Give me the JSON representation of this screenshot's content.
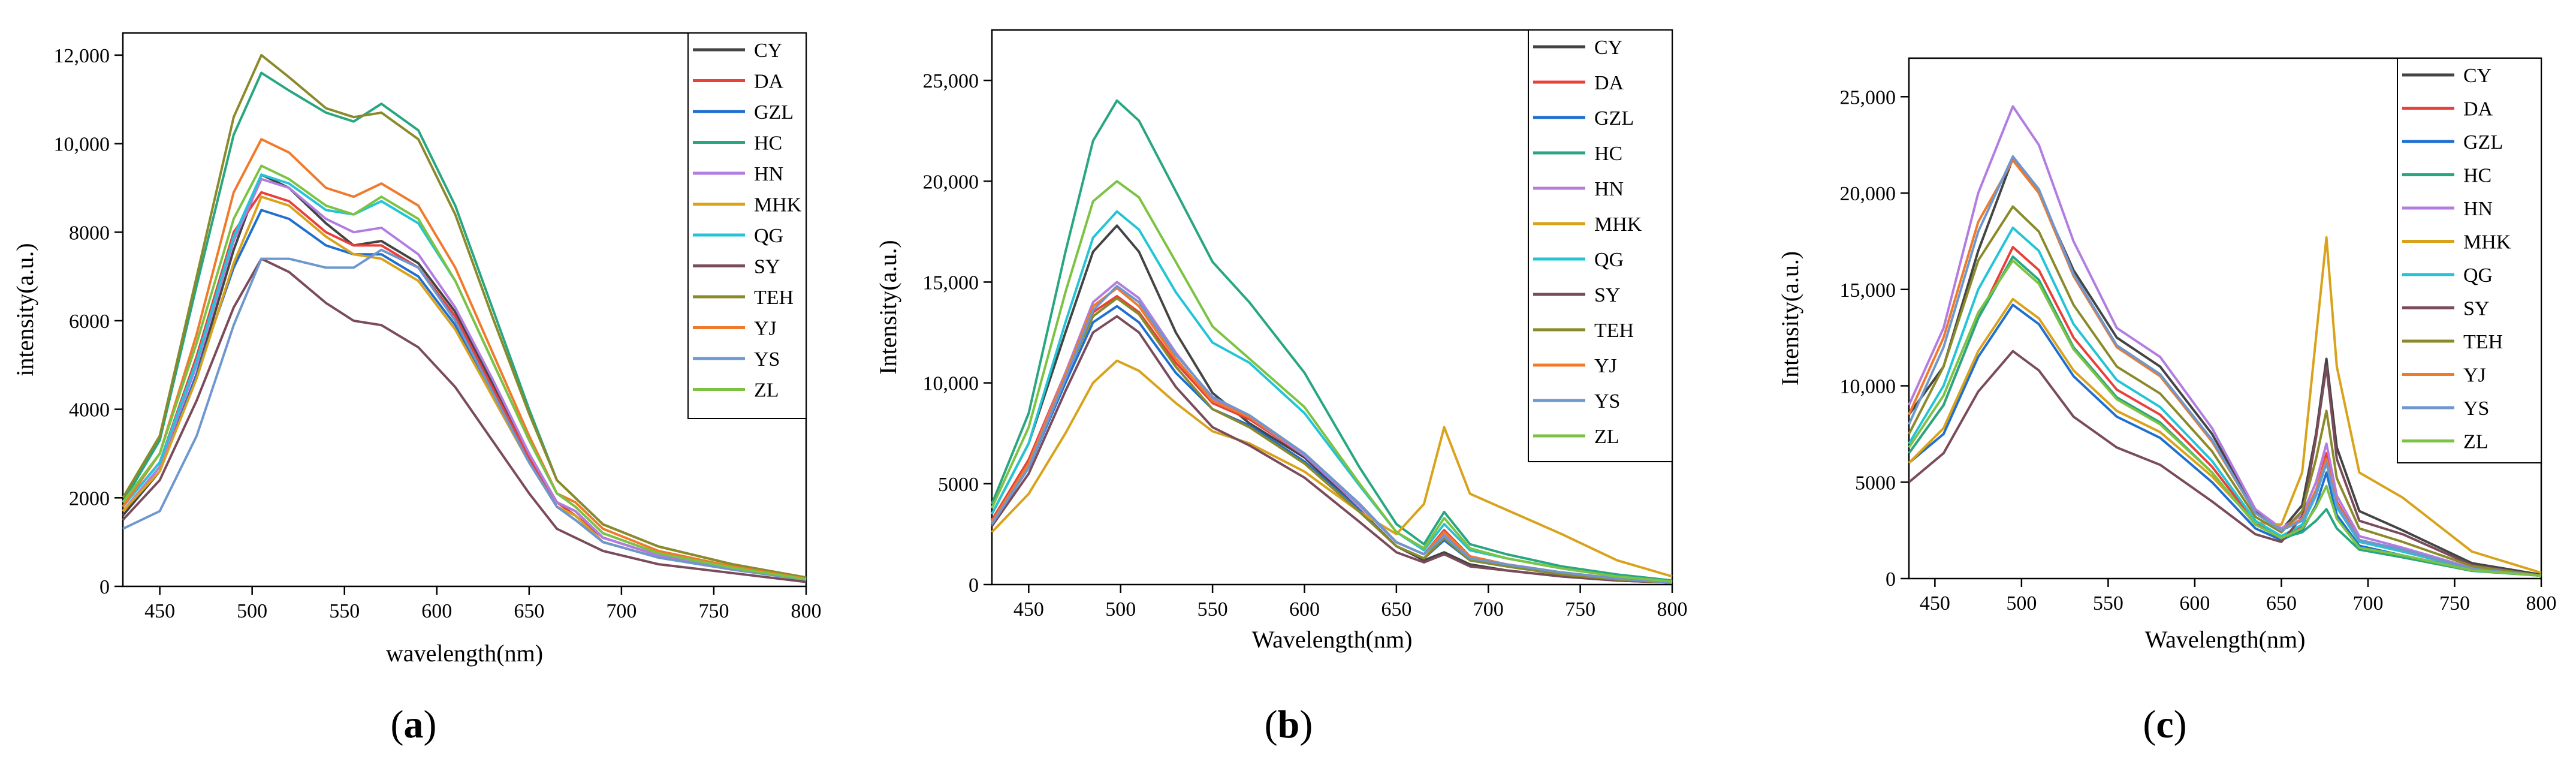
{
  "chart_data": [
    {
      "panel": "(a)",
      "panel_letter": "a",
      "type": "line",
      "xlabel": "wavelength(nm)",
      "ylabel": "intensity(a.u.)",
      "xlim": [
        430,
        800
      ],
      "ylim": [
        0,
        12500
      ],
      "xticks": [
        450,
        500,
        550,
        600,
        650,
        700,
        750,
        800
      ],
      "xtick_labels": [
        "450",
        "500",
        "550",
        "600",
        "650",
        "700",
        "750",
        "800"
      ],
      "yticks": [
        0,
        2000,
        4000,
        6000,
        8000,
        10000,
        12000
      ],
      "ytick_labels": [
        "0",
        "2000",
        "4000",
        "6000",
        "8000",
        "10,000",
        "12,000"
      ],
      "x": [
        430,
        450,
        470,
        490,
        505,
        520,
        540,
        555,
        570,
        590,
        610,
        630,
        650,
        665,
        675,
        690,
        720,
        760,
        800
      ],
      "series": [
        {
          "name": "CY",
          "color": "#444444",
          "values": [
            1600,
            2600,
            4800,
            7600,
            9300,
            9000,
            8200,
            7700,
            7800,
            7300,
            6200,
            4600,
            3000,
            1900,
            1700,
            1100,
            700,
            400,
            150
          ]
        },
        {
          "name": "DA",
          "color": "#e8403a",
          "values": [
            1800,
            2800,
            5200,
            8000,
            8900,
            8700,
            8000,
            7700,
            7700,
            7200,
            6100,
            4500,
            2900,
            1900,
            1600,
            1100,
            700,
            400,
            150
          ]
        },
        {
          "name": "GZL",
          "color": "#1f6fd1",
          "values": [
            1700,
            2600,
            4800,
            7200,
            8500,
            8300,
            7700,
            7500,
            7500,
            7000,
            5900,
            4300,
            2800,
            1800,
            1500,
            1000,
            650,
            380,
            150
          ]
        },
        {
          "name": "HC",
          "color": "#27a681",
          "values": [
            1900,
            3300,
            6800,
            10200,
            11600,
            11200,
            10700,
            10500,
            10900,
            10300,
            8600,
            6300,
            4000,
            2400,
            2000,
            1400,
            900,
            500,
            200
          ]
        },
        {
          "name": "HN",
          "color": "#b27ce0",
          "values": [
            1700,
            2700,
            5000,
            7800,
            9200,
            9000,
            8300,
            8000,
            8100,
            7500,
            6300,
            4700,
            3000,
            1900,
            1700,
            1100,
            700,
            400,
            150
          ]
        },
        {
          "name": "MHK",
          "color": "#d9a21b",
          "values": [
            1700,
            2600,
            4700,
            7300,
            8800,
            8600,
            7900,
            7500,
            7400,
            6900,
            5800,
            4300,
            2800,
            1800,
            1600,
            1000,
            650,
            380,
            150
          ]
        },
        {
          "name": "QG",
          "color": "#22c4d6",
          "values": [
            1800,
            2800,
            5100,
            7900,
            9300,
            9100,
            8500,
            8400,
            8700,
            8200,
            6900,
            5100,
            3300,
            2100,
            1800,
            1200,
            750,
            420,
            160
          ]
        },
        {
          "name": "SY",
          "color": "#7a4b5a",
          "values": [
            1500,
            2400,
            4200,
            6300,
            7400,
            7100,
            6400,
            6000,
            5900,
            5400,
            4500,
            3300,
            2100,
            1300,
            1100,
            800,
            500,
            300,
            100
          ]
        },
        {
          "name": "TEH",
          "color": "#8a8a2a",
          "values": [
            2000,
            3400,
            7000,
            10600,
            12000,
            11500,
            10800,
            10600,
            10700,
            10100,
            8400,
            6100,
            3900,
            2400,
            2000,
            1400,
            900,
            500,
            200
          ]
        },
        {
          "name": "YJ",
          "color": "#f07a2c",
          "values": [
            1800,
            3000,
            5700,
            8900,
            10100,
            9800,
            9000,
            8800,
            9100,
            8600,
            7200,
            5300,
            3400,
            2100,
            1900,
            1300,
            800,
            450,
            170
          ]
        },
        {
          "name": "YS",
          "color": "#6e97cf",
          "values": [
            1300,
            1700,
            3400,
            5900,
            7400,
            7400,
            7200,
            7200,
            7600,
            7200,
            6000,
            4400,
            2800,
            1800,
            1500,
            1000,
            650,
            380,
            150
          ]
        },
        {
          "name": "ZL",
          "color": "#7cc243",
          "values": [
            1900,
            3000,
            5500,
            8300,
            9500,
            9200,
            8600,
            8400,
            8800,
            8300,
            6900,
            5100,
            3300,
            2100,
            1800,
            1200,
            750,
            420,
            160
          ]
        }
      ]
    },
    {
      "panel": "(b)",
      "panel_letter": "b",
      "type": "line",
      "xlabel": "Wavelength(nm)",
      "ylabel": "Intensity(a.u.)",
      "xlim": [
        430,
        800
      ],
      "ylim": [
        0,
        27500
      ],
      "xticks": [
        450,
        500,
        550,
        600,
        650,
        700,
        750,
        800
      ],
      "xtick_labels": [
        "450",
        "500",
        "550",
        "600",
        "650",
        "700",
        "750",
        "800"
      ],
      "yticks": [
        0,
        5000,
        10000,
        15000,
        20000,
        25000
      ],
      "ytick_labels": [
        "0",
        "5000",
        "10,000",
        "15,000",
        "20,000",
        "25,000"
      ],
      "x": [
        430,
        450,
        470,
        485,
        498,
        510,
        530,
        550,
        570,
        600,
        630,
        650,
        665,
        676,
        690,
        710,
        740,
        770,
        800
      ],
      "series": [
        {
          "name": "CY",
          "color": "#444444",
          "values": [
            3500,
            7000,
            12500,
            16500,
            17800,
            16500,
            12500,
            9500,
            8000,
            6300,
            3700,
            1900,
            1200,
            1600,
            1000,
            700,
            400,
            200,
            100
          ]
        },
        {
          "name": "DA",
          "color": "#e8403a",
          "values": [
            3200,
            6200,
            10500,
            13500,
            14300,
            13500,
            11000,
            9000,
            8200,
            6400,
            3900,
            2100,
            1500,
            2700,
            1400,
            1000,
            600,
            300,
            100
          ]
        },
        {
          "name": "GZL",
          "color": "#1f6fd1",
          "values": [
            3000,
            5800,
            10000,
            13000,
            13800,
            13000,
            10500,
            8700,
            7900,
            6100,
            3700,
            1900,
            1300,
            2200,
            1200,
            900,
            500,
            250,
            100
          ]
        },
        {
          "name": "HC",
          "color": "#27a681",
          "values": [
            4000,
            8500,
            16500,
            22000,
            24000,
            23000,
            19500,
            16000,
            14000,
            10500,
            5800,
            3000,
            2000,
            3600,
            2000,
            1500,
            900,
            500,
            200
          ]
        },
        {
          "name": "HN",
          "color": "#b27ce0",
          "values": [
            3000,
            6000,
            10500,
            14000,
            15000,
            14200,
            11500,
            9200,
            8300,
            6400,
            3900,
            2100,
            1500,
            2500,
            1300,
            1000,
            600,
            300,
            100
          ]
        },
        {
          "name": "MHK",
          "color": "#d9a21b",
          "values": [
            2600,
            4500,
            7500,
            10000,
            11100,
            10600,
            9000,
            7600,
            7000,
            5600,
            3600,
            2500,
            4000,
            7800,
            4500,
            3700,
            2500,
            1200,
            400
          ]
        },
        {
          "name": "QG",
          "color": "#22c4d6",
          "values": [
            3500,
            7000,
            13000,
            17200,
            18500,
            17600,
            14500,
            12000,
            11000,
            8500,
            4900,
            2600,
            1700,
            3000,
            1700,
            1300,
            800,
            400,
            150
          ]
        },
        {
          "name": "SY",
          "color": "#7a4b5a",
          "values": [
            2900,
            5500,
            9600,
            12500,
            13300,
            12500,
            9800,
            7800,
            6900,
            5300,
            3100,
            1600,
            1100,
            1500,
            900,
            700,
            400,
            200,
            100
          ]
        },
        {
          "name": "TEH",
          "color": "#8a8a2a",
          "values": [
            3100,
            6000,
            10300,
            13300,
            14200,
            13400,
            10800,
            8700,
            7800,
            6000,
            3600,
            1900,
            1300,
            2300,
            1200,
            900,
            500,
            250,
            100
          ]
        },
        {
          "name": "YJ",
          "color": "#f07a2c",
          "values": [
            3100,
            6000,
            10400,
            13800,
            14700,
            13800,
            11200,
            9100,
            8300,
            6500,
            4000,
            2100,
            1500,
            2600,
            1400,
            1000,
            600,
            300,
            100
          ]
        },
        {
          "name": "YS",
          "color": "#6e97cf",
          "values": [
            3000,
            5800,
            10200,
            13600,
            14800,
            14000,
            11400,
            9300,
            8400,
            6500,
            4000,
            2100,
            1500,
            2400,
            1300,
            1000,
            600,
            300,
            100
          ]
        },
        {
          "name": "ZL",
          "color": "#7cc243",
          "values": [
            3800,
            7800,
            14500,
            19000,
            20000,
            19200,
            16000,
            12800,
            11200,
            8800,
            5000,
            2600,
            1800,
            3300,
            1800,
            1300,
            800,
            400,
            150
          ]
        }
      ]
    },
    {
      "panel": "(c)",
      "panel_letter": "c",
      "type": "line",
      "xlabel": "Wavelength(nm)",
      "ylabel": "Intensity(a.u.)",
      "xlim": [
        435,
        800
      ],
      "ylim": [
        0,
        27000
      ],
      "xticks": [
        450,
        500,
        550,
        600,
        650,
        700,
        750,
        800
      ],
      "xtick_labels": [
        "450",
        "500",
        "550",
        "600",
        "650",
        "700",
        "750",
        "800"
      ],
      "yticks": [
        0,
        5000,
        10000,
        15000,
        20000,
        25000
      ],
      "ytick_labels": [
        "0",
        "5000",
        "10,000",
        "15,000",
        "20,000",
        "25,000"
      ],
      "x": [
        435,
        455,
        475,
        495,
        510,
        530,
        555,
        580,
        610,
        635,
        650,
        662,
        670,
        676,
        682,
        695,
        720,
        760,
        800
      ],
      "series": [
        {
          "name": "CY",
          "color": "#444444",
          "values": [
            8500,
            11000,
            17000,
            21800,
            20000,
            16000,
            12500,
            11000,
            7500,
            3500,
            2500,
            3800,
            7500,
            11400,
            6800,
            3500,
            2500,
            800,
            200
          ]
        },
        {
          "name": "DA",
          "color": "#e8403a",
          "values": [
            6500,
            9000,
            13500,
            17200,
            16000,
            12500,
            9800,
            8500,
            5800,
            2900,
            2100,
            2700,
            4500,
            6500,
            4000,
            2000,
            1400,
            500,
            150
          ]
        },
        {
          "name": "GZL",
          "color": "#1f6fd1",
          "values": [
            6000,
            7500,
            11500,
            14200,
            13200,
            10500,
            8400,
            7300,
            5000,
            2600,
            2000,
            2500,
            3800,
            5500,
            3300,
            1700,
            1200,
            450,
            150
          ]
        },
        {
          "name": "HC",
          "color": "#27a681",
          "values": [
            6500,
            9000,
            13500,
            16700,
            15500,
            12000,
            9400,
            8100,
            5500,
            2800,
            2100,
            2400,
            3000,
            3600,
            2600,
            1500,
            1100,
            400,
            150
          ]
        },
        {
          "name": "HN",
          "color": "#b27ce0",
          "values": [
            9000,
            13000,
            20000,
            24500,
            22500,
            17500,
            13000,
            11500,
            7800,
            3600,
            2600,
            3300,
            5000,
            7000,
            4300,
            2200,
            1600,
            550,
            150
          ]
        },
        {
          "name": "MHK",
          "color": "#d9a21b",
          "values": [
            6000,
            7800,
            11800,
            14500,
            13500,
            10800,
            8700,
            7600,
            5300,
            2900,
            2800,
            5500,
            12500,
            17700,
            11000,
            5500,
            4200,
            1400,
            300
          ]
        },
        {
          "name": "QG",
          "color": "#22c4d6",
          "values": [
            7000,
            10000,
            15000,
            18200,
            17000,
            13200,
            10300,
            8900,
            6100,
            3000,
            2200,
            2800,
            4300,
            6000,
            3700,
            1900,
            1400,
            500,
            150
          ]
        },
        {
          "name": "SY",
          "color": "#7a4b5a",
          "values": [
            5000,
            6500,
            9700,
            11800,
            10800,
            8400,
            6800,
            5900,
            4000,
            2300,
            1900,
            3200,
            7300,
            11000,
            6200,
            3000,
            2300,
            700,
            150
          ]
        },
        {
          "name": "TEH",
          "color": "#8a8a2a",
          "values": [
            7500,
            11000,
            16500,
            19300,
            18000,
            14200,
            11000,
            9600,
            6600,
            3200,
            2400,
            3500,
            6200,
            8700,
            5200,
            2600,
            1900,
            650,
            150
          ]
        },
        {
          "name": "YJ",
          "color": "#f07a2c",
          "values": [
            8500,
            12500,
            18500,
            21700,
            20000,
            15700,
            12000,
            10500,
            7100,
            3400,
            2500,
            3100,
            4600,
            6200,
            3900,
            2000,
            1500,
            500,
            150
          ]
        },
        {
          "name": "YS",
          "color": "#6e97cf",
          "values": [
            8000,
            12000,
            18000,
            21900,
            20200,
            15800,
            12100,
            10600,
            7200,
            3400,
            2500,
            3000,
            4400,
            6000,
            3800,
            2000,
            1500,
            500,
            150
          ]
        },
        {
          "name": "ZL",
          "color": "#7cc243",
          "values": [
            6800,
            9500,
            13800,
            16500,
            15300,
            11900,
            9300,
            8000,
            5500,
            2800,
            2100,
            2600,
            3700,
            4800,
            3100,
            1600,
            1200,
            430,
            150
          ]
        }
      ]
    }
  ]
}
